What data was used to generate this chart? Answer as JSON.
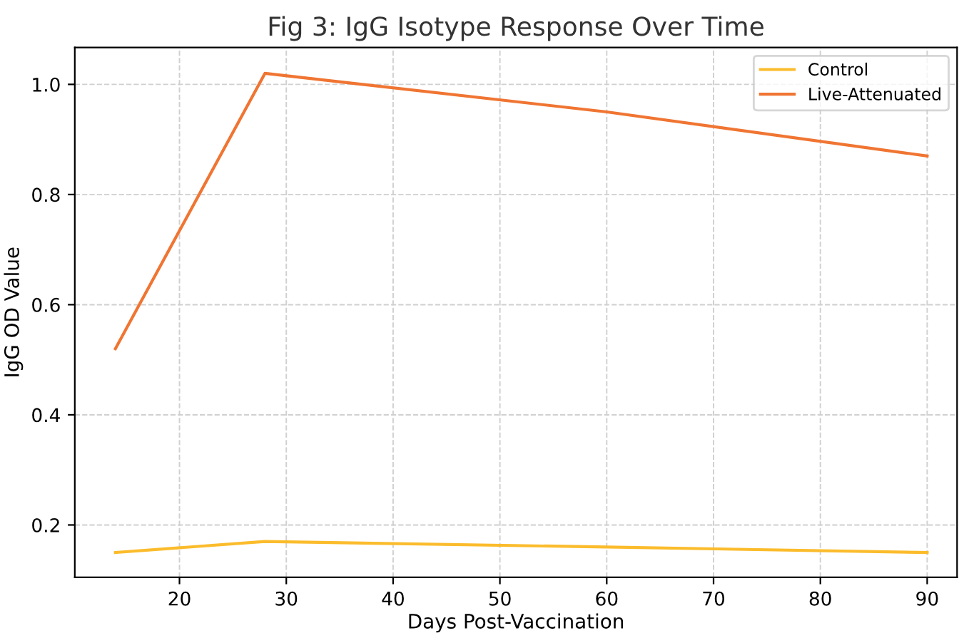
{
  "chart_data": {
    "type": "line",
    "title": "Fig 3: IgG Isotype Response Over Time",
    "xlabel": "Days Post-Vaccination",
    "ylabel": "IgG OD Value",
    "x": [
      14,
      28,
      60,
      90
    ],
    "series": [
      {
        "name": "Control",
        "color": "#fbbc2c",
        "values": [
          0.15,
          0.17,
          0.16,
          0.15
        ]
      },
      {
        "name": "Live-Attenuated",
        "color": "#f07532",
        "values": [
          0.52,
          1.02,
          0.95,
          0.87
        ]
      }
    ],
    "xlim": [
      10.2,
      92.8
    ],
    "ylim": [
      0.105,
      1.067
    ],
    "xticks": [
      20,
      30,
      40,
      50,
      60,
      70,
      80,
      90
    ],
    "yticks": [
      0.2,
      0.4,
      0.6,
      0.8,
      {
        "value": 1,
        "label": "1.0"
      }
    ],
    "grid": true,
    "legend": "top right",
    "line_style": "solid"
  }
}
